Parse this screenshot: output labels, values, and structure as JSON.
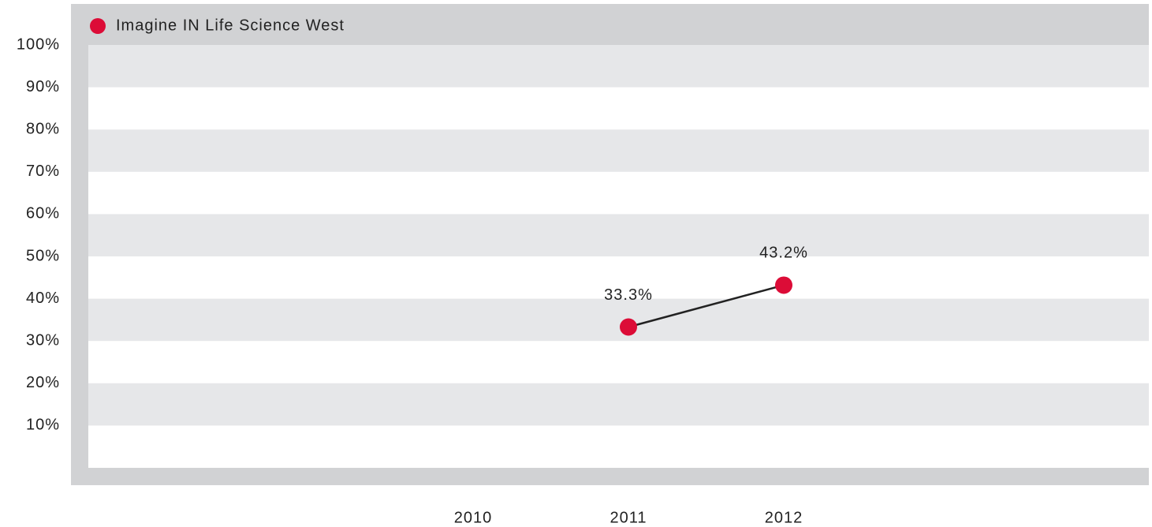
{
  "chart_data": {
    "type": "line",
    "categories": [
      "2010",
      "2011",
      "2012"
    ],
    "series": [
      {
        "name": "Imagine IN Life Science West",
        "color": "#dc0c37",
        "line_color": "#222222",
        "values": [
          null,
          33.3,
          43.2
        ],
        "value_labels": [
          null,
          "33.3%",
          "43.2%"
        ]
      }
    ],
    "ylim": [
      0,
      100
    ],
    "yticks": [
      {
        "value": 10,
        "label": "10%"
      },
      {
        "value": 20,
        "label": "20%"
      },
      {
        "value": 30,
        "label": "30%"
      },
      {
        "value": 40,
        "label": "40%"
      },
      {
        "value": 50,
        "label": "50%"
      },
      {
        "value": 60,
        "label": "60%"
      },
      {
        "value": 70,
        "label": "70%"
      },
      {
        "value": 80,
        "label": "80%"
      },
      {
        "value": 90,
        "label": "90%"
      },
      {
        "value": 100,
        "label": "100%"
      }
    ],
    "grid": true,
    "legend": "top-left"
  }
}
